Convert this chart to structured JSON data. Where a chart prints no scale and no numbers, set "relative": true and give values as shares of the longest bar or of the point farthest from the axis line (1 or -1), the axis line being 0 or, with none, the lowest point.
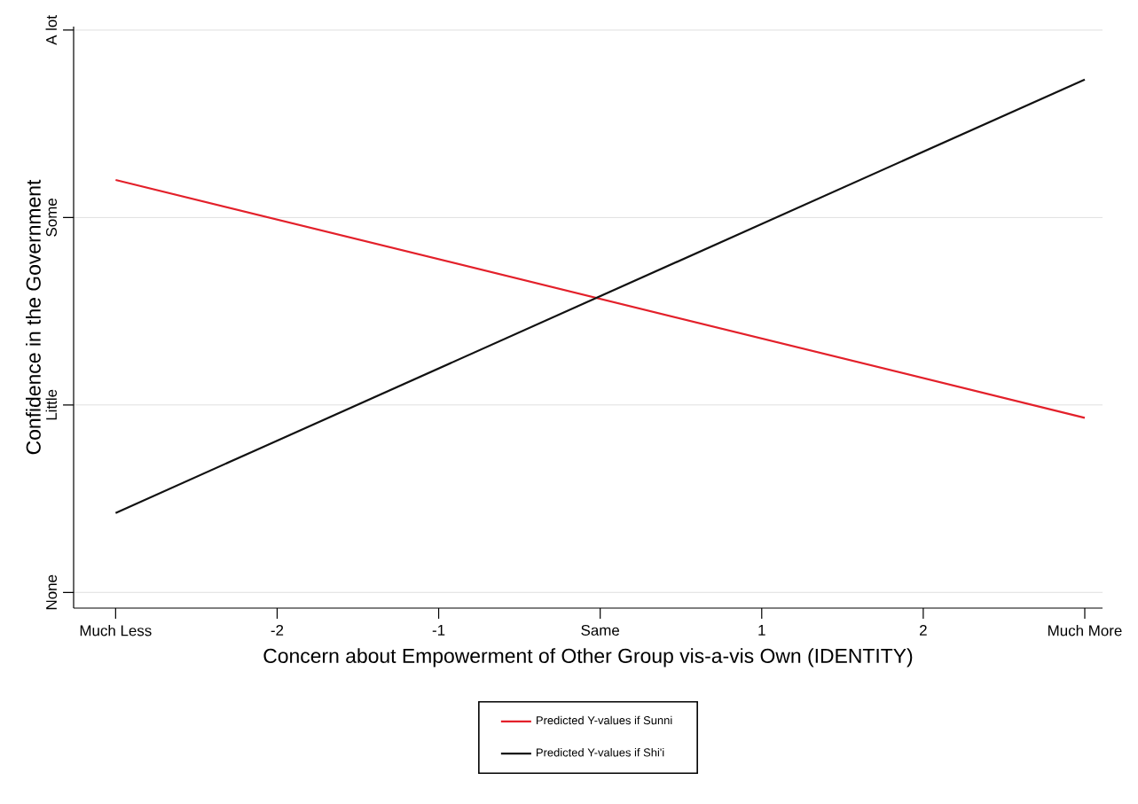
{
  "chart_data": {
    "type": "line",
    "xlabel": "Concern about Empowerment of Other Group vis-a-vis Own (IDENTITY)",
    "ylabel": "Confidence in the Government",
    "x": [
      -3,
      3
    ],
    "series": [
      {
        "name": "Predicted Y-values if Sunni",
        "color": "#e3202a",
        "values": [
          0.81,
          0.36
        ]
      },
      {
        "name": "Predicted Y-values if Shi'i",
        "color": "#111111",
        "values": [
          0.18,
          1
        ]
      }
    ],
    "relative": true,
    "xlim": [
      -3.26,
      3.11
    ],
    "ylim": [
      0,
      1.1
    ],
    "xticks": [
      {
        "value": -3,
        "label": "Much Less"
      },
      -2,
      -1,
      {
        "value": 0,
        "label": "Same"
      },
      1,
      2,
      {
        "value": 3,
        "label": "Much More"
      }
    ],
    "annotations": [
      "None",
      "Little",
      "Some",
      "A lot"
    ],
    "grid": "y",
    "legend": "bottom",
    "marker": "none",
    "line_style": "solid"
  }
}
